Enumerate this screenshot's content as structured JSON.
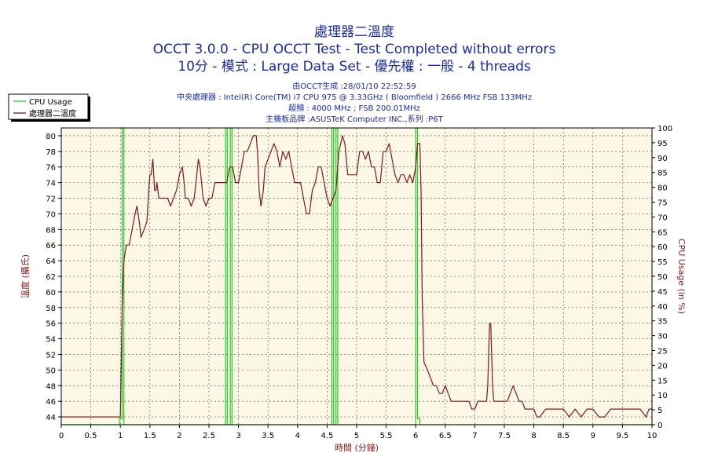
{
  "chart_data": {
    "type": "line",
    "title_lines": [
      "處理器二溫度",
      "OCCT 3.0.0 - CPU OCCT Test - Test Completed without errors",
      "10分 - 模式 : Large Data Set - 優先權 : 一般 - 4 threads"
    ],
    "info_lines": [
      "由OCCT生成 :28/01/10 22:52:59",
      "中央處理器 : Intel(R) Core(TM) i7 CPU 975 @ 3.33GHz ( Bloomfield ) 2666 MHz FSB 133MHz",
      "超頻 : 4000 MHz ; FSB 200.01MHz",
      "主機板品牌 :ASUSTeK Computer INC.,系列 :P6T"
    ],
    "xlabel": "時間 (分鐘)",
    "ylabel_left": "溫度 (攝氏)",
    "ylabel_right": "CPU Usage (in %)",
    "xlim": [
      0,
      10
    ],
    "ylim_left": [
      43,
      81
    ],
    "ylim_right": [
      0,
      100
    ],
    "xticks": [
      "0",
      "0.5",
      "1",
      "1.5",
      "2",
      "2.5",
      "3",
      "3.5",
      "4",
      "4.5",
      "5",
      "5.5",
      "6",
      "6.5",
      "7",
      "7.5",
      "8",
      "8.5",
      "9",
      "9.5",
      "10"
    ],
    "yticks_left": [
      "44",
      "46",
      "48",
      "50",
      "52",
      "54",
      "56",
      "58",
      "60",
      "62",
      "64",
      "66",
      "68",
      "70",
      "72",
      "74",
      "76",
      "78",
      "80"
    ],
    "yticks_right": [
      "0",
      "5",
      "10",
      "15",
      "20",
      "25",
      "30",
      "35",
      "40",
      "45",
      "50",
      "55",
      "60",
      "65",
      "70",
      "75",
      "80",
      "85",
      "90",
      "95",
      "100"
    ],
    "grid": true,
    "legend_position": "top-left",
    "series": [
      {
        "name": "CPU Usage",
        "axis": "right",
        "color": "#22cc22",
        "points": [
          [
            0,
            0
          ],
          [
            0.98,
            0
          ],
          [
            0.98,
            2
          ],
          [
            1.03,
            2
          ],
          [
            1.03,
            100
          ],
          [
            1.06,
            100
          ],
          [
            1.06,
            0
          ],
          [
            2.78,
            0
          ],
          [
            2.78,
            100
          ],
          [
            2.81,
            100
          ],
          [
            2.81,
            0
          ],
          [
            2.86,
            0
          ],
          [
            2.86,
            100
          ],
          [
            2.89,
            100
          ],
          [
            2.89,
            0
          ],
          [
            4.58,
            0
          ],
          [
            4.58,
            100
          ],
          [
            4.61,
            100
          ],
          [
            4.61,
            0
          ],
          [
            4.65,
            0
          ],
          [
            4.65,
            100
          ],
          [
            4.68,
            100
          ],
          [
            4.68,
            0
          ],
          [
            6.0,
            0
          ],
          [
            6.0,
            100
          ],
          [
            6.03,
            100
          ],
          [
            6.03,
            2
          ],
          [
            6.07,
            2
          ],
          [
            6.07,
            0
          ],
          [
            10,
            0
          ]
        ]
      },
      {
        "name": "處理器二溫度",
        "axis": "left",
        "color": "#7a1a1a",
        "points": [
          [
            0,
            44
          ],
          [
            1.0,
            44
          ],
          [
            1.03,
            58
          ],
          [
            1.06,
            64
          ],
          [
            1.1,
            66
          ],
          [
            1.15,
            66
          ],
          [
            1.2,
            68
          ],
          [
            1.25,
            70
          ],
          [
            1.28,
            71
          ],
          [
            1.32,
            69
          ],
          [
            1.35,
            67
          ],
          [
            1.4,
            68
          ],
          [
            1.45,
            69
          ],
          [
            1.48,
            73
          ],
          [
            1.5,
            75
          ],
          [
            1.52,
            75
          ],
          [
            1.55,
            77
          ],
          [
            1.58,
            73
          ],
          [
            1.6,
            73
          ],
          [
            1.62,
            74
          ],
          [
            1.65,
            72
          ],
          [
            1.7,
            72
          ],
          [
            1.75,
            72
          ],
          [
            1.8,
            72
          ],
          [
            1.85,
            71
          ],
          [
            1.9,
            72
          ],
          [
            1.95,
            73
          ],
          [
            2.0,
            75
          ],
          [
            2.05,
            76
          ],
          [
            2.08,
            74
          ],
          [
            2.1,
            72
          ],
          [
            2.15,
            72
          ],
          [
            2.2,
            71
          ],
          [
            2.25,
            72
          ],
          [
            2.28,
            74
          ],
          [
            2.32,
            77
          ],
          [
            2.35,
            76
          ],
          [
            2.4,
            72
          ],
          [
            2.45,
            71
          ],
          [
            2.5,
            72
          ],
          [
            2.55,
            72
          ],
          [
            2.6,
            74
          ],
          [
            2.65,
            74
          ],
          [
            2.7,
            74
          ],
          [
            2.75,
            74
          ],
          [
            2.8,
            74
          ],
          [
            2.85,
            76
          ],
          [
            2.9,
            76
          ],
          [
            2.95,
            74
          ],
          [
            3.0,
            74
          ],
          [
            3.05,
            76
          ],
          [
            3.1,
            78
          ],
          [
            3.15,
            78
          ],
          [
            3.2,
            79
          ],
          [
            3.25,
            80
          ],
          [
            3.3,
            80
          ],
          [
            3.32,
            78
          ],
          [
            3.35,
            73
          ],
          [
            3.38,
            71
          ],
          [
            3.42,
            73
          ],
          [
            3.45,
            76
          ],
          [
            3.5,
            77
          ],
          [
            3.55,
            78
          ],
          [
            3.6,
            79
          ],
          [
            3.65,
            78
          ],
          [
            3.7,
            76
          ],
          [
            3.75,
            78
          ],
          [
            3.8,
            77
          ],
          [
            3.85,
            78
          ],
          [
            3.9,
            76
          ],
          [
            3.95,
            74
          ],
          [
            4.0,
            74
          ],
          [
            4.05,
            74
          ],
          [
            4.1,
            72
          ],
          [
            4.15,
            70
          ],
          [
            4.2,
            70
          ],
          [
            4.25,
            73
          ],
          [
            4.3,
            74
          ],
          [
            4.35,
            76
          ],
          [
            4.4,
            76
          ],
          [
            4.45,
            74
          ],
          [
            4.5,
            72
          ],
          [
            4.55,
            71
          ],
          [
            4.6,
            72
          ],
          [
            4.65,
            73
          ],
          [
            4.7,
            78
          ],
          [
            4.73,
            79
          ],
          [
            4.76,
            80
          ],
          [
            4.8,
            79
          ],
          [
            4.85,
            75
          ],
          [
            4.9,
            75
          ],
          [
            4.95,
            75
          ],
          [
            5.0,
            75
          ],
          [
            5.05,
            78
          ],
          [
            5.1,
            78
          ],
          [
            5.15,
            77
          ],
          [
            5.2,
            78
          ],
          [
            5.25,
            76
          ],
          [
            5.3,
            76
          ],
          [
            5.35,
            74
          ],
          [
            5.4,
            74
          ],
          [
            5.45,
            78
          ],
          [
            5.5,
            78
          ],
          [
            5.55,
            79
          ],
          [
            5.6,
            77
          ],
          [
            5.65,
            75
          ],
          [
            5.7,
            74
          ],
          [
            5.75,
            75
          ],
          [
            5.8,
            75
          ],
          [
            5.85,
            74
          ],
          [
            5.9,
            75
          ],
          [
            5.95,
            74
          ],
          [
            6.0,
            76
          ],
          [
            6.03,
            79
          ],
          [
            6.07,
            79
          ],
          [
            6.09,
            73
          ],
          [
            6.11,
            59
          ],
          [
            6.14,
            51
          ],
          [
            6.2,
            50
          ],
          [
            6.25,
            49
          ],
          [
            6.3,
            48
          ],
          [
            6.35,
            48
          ],
          [
            6.4,
            47
          ],
          [
            6.45,
            47
          ],
          [
            6.5,
            48
          ],
          [
            6.55,
            47
          ],
          [
            6.6,
            46
          ],
          [
            6.65,
            46
          ],
          [
            6.7,
            46
          ],
          [
            6.8,
            46
          ],
          [
            6.9,
            46
          ],
          [
            6.95,
            45
          ],
          [
            7.0,
            45
          ],
          [
            7.05,
            46
          ],
          [
            7.1,
            46
          ],
          [
            7.15,
            46
          ],
          [
            7.2,
            46
          ],
          [
            7.22,
            48
          ],
          [
            7.25,
            56
          ],
          [
            7.27,
            56
          ],
          [
            7.3,
            48
          ],
          [
            7.32,
            46
          ],
          [
            7.4,
            46
          ],
          [
            7.5,
            46
          ],
          [
            7.55,
            46
          ],
          [
            7.6,
            47
          ],
          [
            7.65,
            48
          ],
          [
            7.7,
            47
          ],
          [
            7.75,
            46
          ],
          [
            7.8,
            46
          ],
          [
            7.85,
            45
          ],
          [
            7.9,
            45
          ],
          [
            8.0,
            45
          ],
          [
            8.05,
            44
          ],
          [
            8.1,
            44
          ],
          [
            8.2,
            45
          ],
          [
            8.3,
            45
          ],
          [
            8.4,
            45
          ],
          [
            8.5,
            45
          ],
          [
            8.6,
            44
          ],
          [
            8.7,
            45
          ],
          [
            8.8,
            44
          ],
          [
            8.9,
            45
          ],
          [
            9.0,
            45
          ],
          [
            9.1,
            44
          ],
          [
            9.2,
            44
          ],
          [
            9.3,
            45
          ],
          [
            9.4,
            45
          ],
          [
            9.5,
            45
          ],
          [
            9.6,
            45
          ],
          [
            9.7,
            45
          ],
          [
            9.8,
            45
          ],
          [
            9.9,
            44
          ],
          [
            9.95,
            45
          ],
          [
            10.0,
            45
          ]
        ]
      }
    ]
  }
}
